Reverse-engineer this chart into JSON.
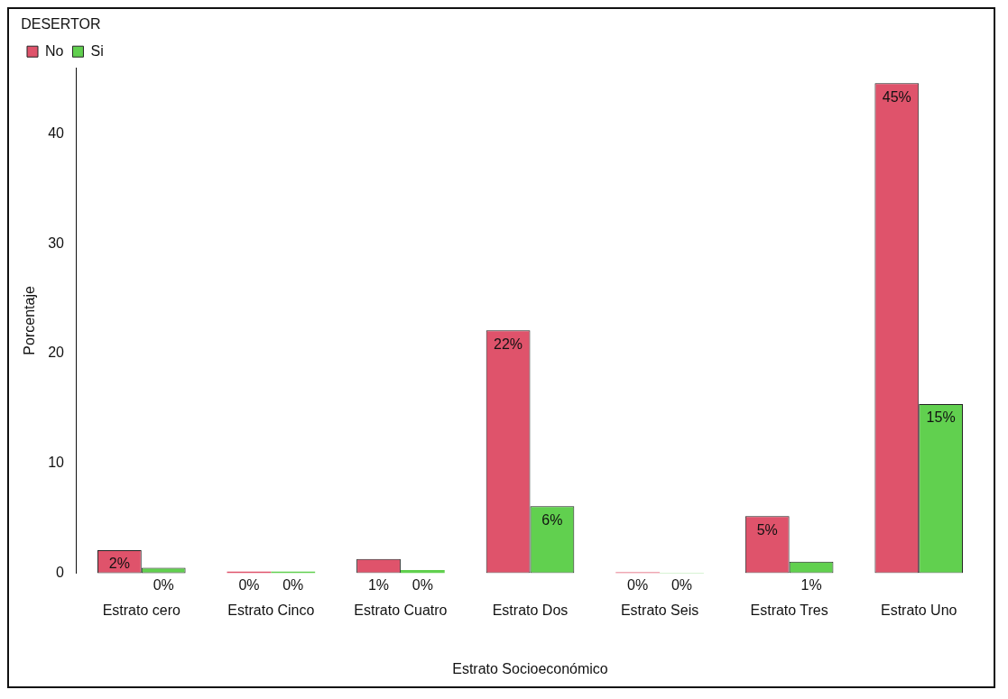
{
  "chart_data": {
    "type": "bar",
    "xlabel": "Estrato Socioeconómico",
    "ylabel": "Porcentaje",
    "legend_title": "DESERTOR",
    "legend": "top left",
    "grid": false,
    "categories": [
      "Estrato cero",
      "Estrato Cinco",
      "Estrato Cuatro",
      "Estrato Dos",
      "Estrato Seis",
      "Estrato Tres",
      "Estrato Uno"
    ],
    "series": [
      {
        "name": "No",
        "color": "#df536b",
        "values": [
          2.1,
          0.15,
          1.3,
          22.1,
          0.1,
          5.2,
          44.6
        ],
        "value_labels": [
          "2%",
          "0%",
          "1%",
          "22%",
          "0%",
          "5%",
          "45%"
        ]
      },
      {
        "name": "Si",
        "color": "#61d04f",
        "values": [
          0.5,
          0.15,
          0.3,
          6.1,
          0.05,
          1.05,
          15.4
        ],
        "value_labels": [
          "0%",
          "0%",
          "0%",
          "6%",
          "0%",
          "1%",
          "15%"
        ]
      }
    ],
    "ylim": [
      0,
      46
    ],
    "yticks": [
      0,
      10,
      20,
      30,
      40
    ]
  }
}
